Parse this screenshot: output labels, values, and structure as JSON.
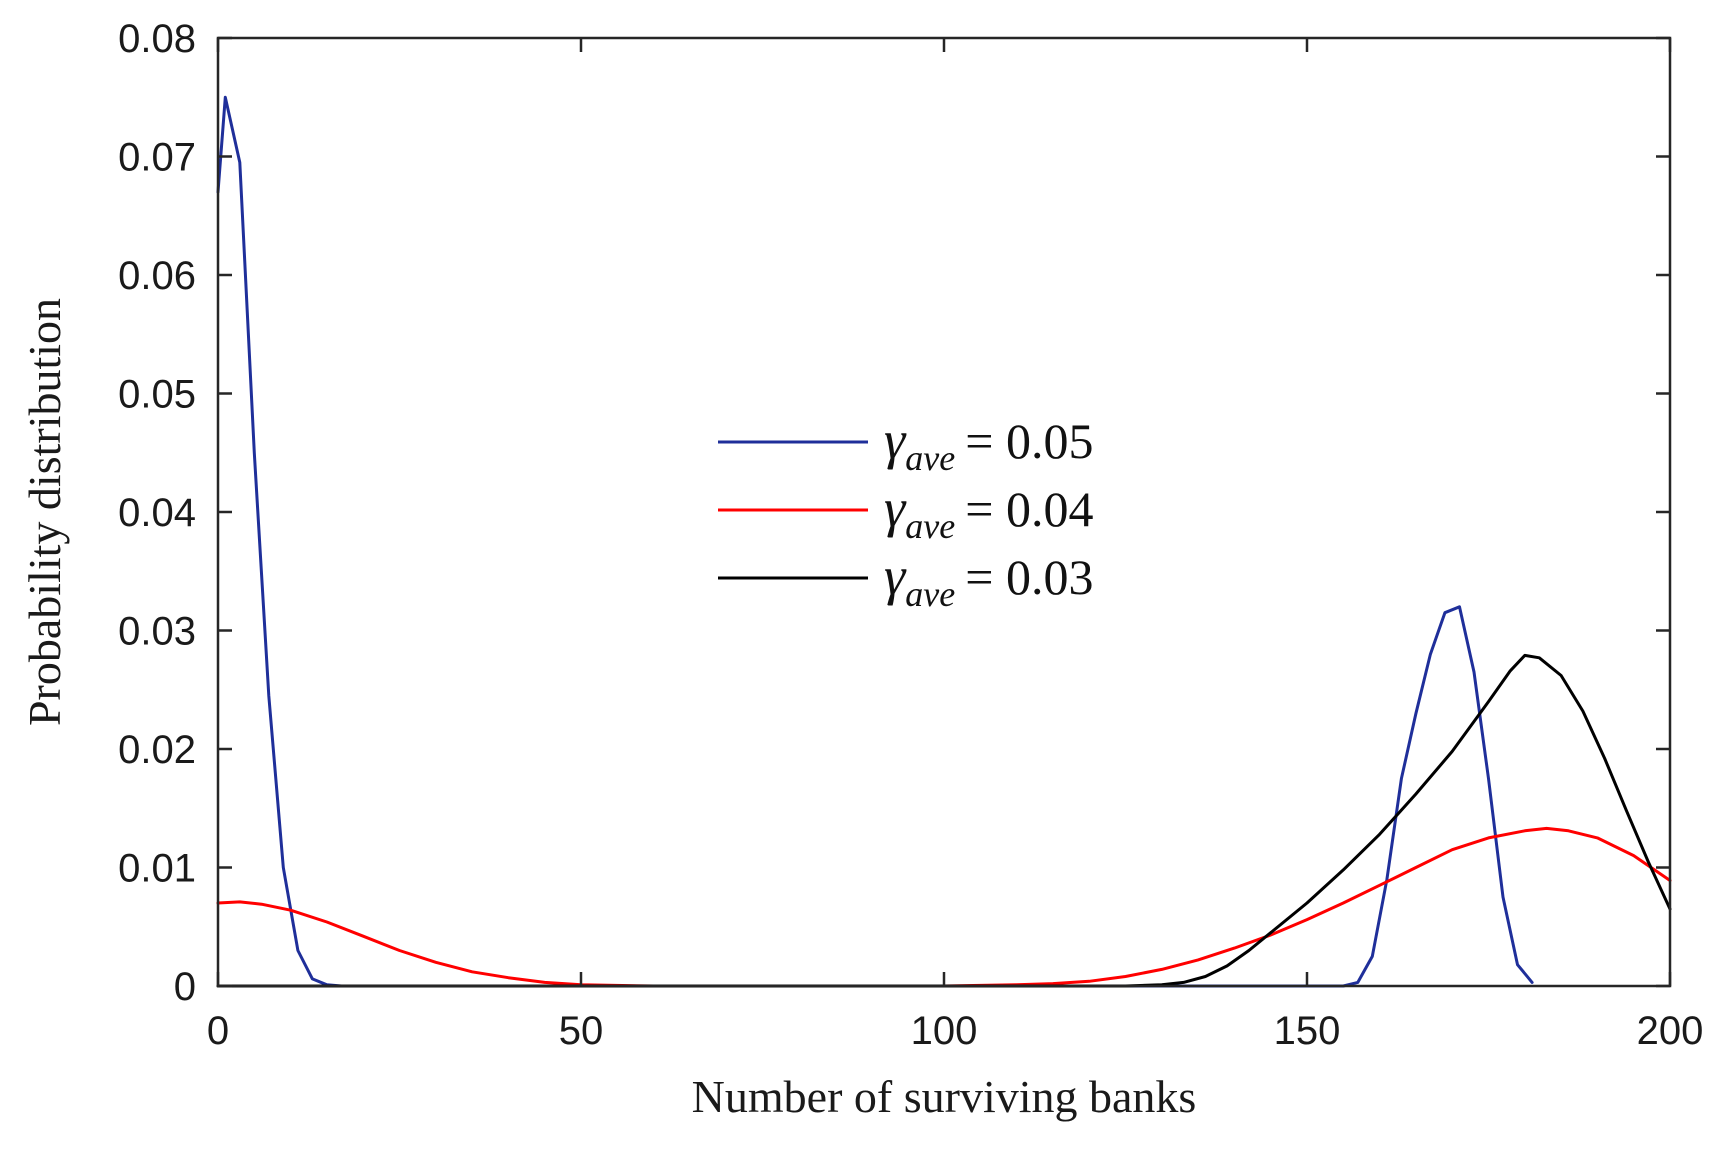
{
  "chart_data": {
    "type": "line",
    "title": "",
    "xlabel": "Number of surviving banks",
    "ylabel": "Probability distribution",
    "xlim": [
      0,
      200
    ],
    "ylim": [
      0,
      0.08
    ],
    "grid": false,
    "legend_position": "center",
    "x_ticks": [
      0,
      50,
      100,
      150,
      200
    ],
    "x_tick_labels": [
      "0",
      "50",
      "100",
      "150",
      "200"
    ],
    "y_ticks": [
      0,
      0.01,
      0.02,
      0.03,
      0.04,
      0.05,
      0.06,
      0.07,
      0.08
    ],
    "y_tick_labels": [
      "0",
      "0.01",
      "0.02",
      "0.03",
      "0.04",
      "0.05",
      "0.06",
      "0.07",
      "0.08"
    ],
    "series": [
      {
        "name": "γ_ave = 0.05",
        "legend_symbol": "γ",
        "legend_subscript": "ave",
        "legend_value": "= 0.05",
        "color": "#1f2f9a",
        "points": [
          [
            0,
            0.067
          ],
          [
            1,
            0.075
          ],
          [
            3,
            0.0695
          ],
          [
            5,
            0.045
          ],
          [
            7,
            0.0245
          ],
          [
            9,
            0.01
          ],
          [
            11,
            0.003
          ],
          [
            13,
            0.0006
          ],
          [
            15,
            0.0001
          ],
          [
            17,
            0
          ],
          [
            155,
            0
          ],
          [
            157,
            0.0003
          ],
          [
            159,
            0.0025
          ],
          [
            161,
            0.009
          ],
          [
            163,
            0.0175
          ],
          [
            165,
            0.023
          ],
          [
            167,
            0.028
          ],
          [
            169,
            0.0315
          ],
          [
            171,
            0.032
          ],
          [
            173,
            0.0265
          ],
          [
            175,
            0.0175
          ],
          [
            177,
            0.0075
          ],
          [
            179,
            0.0018
          ],
          [
            181,
            0.0003
          ]
        ]
      },
      {
        "name": "γ_ave = 0.04",
        "legend_symbol": "γ",
        "legend_subscript": "ave",
        "legend_value": "= 0.04",
        "color": "#ff0000",
        "points": [
          [
            0,
            0.007
          ],
          [
            3,
            0.0071
          ],
          [
            6,
            0.0069
          ],
          [
            10,
            0.0064
          ],
          [
            15,
            0.0054
          ],
          [
            20,
            0.0042
          ],
          [
            25,
            0.003
          ],
          [
            30,
            0.002
          ],
          [
            35,
            0.0012
          ],
          [
            40,
            0.0007
          ],
          [
            45,
            0.0003
          ],
          [
            50,
            0.0001
          ],
          [
            60,
            0
          ],
          [
            100,
            0
          ],
          [
            110,
            0.0001
          ],
          [
            115,
            0.0002
          ],
          [
            120,
            0.0004
          ],
          [
            125,
            0.0008
          ],
          [
            130,
            0.0014
          ],
          [
            135,
            0.0022
          ],
          [
            140,
            0.0032
          ],
          [
            145,
            0.0043
          ],
          [
            150,
            0.0056
          ],
          [
            155,
            0.007
          ],
          [
            160,
            0.0085
          ],
          [
            165,
            0.01
          ],
          [
            170,
            0.0115
          ],
          [
            175,
            0.0125
          ],
          [
            180,
            0.0131
          ],
          [
            183,
            0.0133
          ],
          [
            186,
            0.0131
          ],
          [
            190,
            0.0125
          ],
          [
            195,
            0.011
          ],
          [
            200,
            0.0089
          ]
        ]
      },
      {
        "name": "γ_ave = 0.03",
        "legend_symbol": "γ",
        "legend_subscript": "ave",
        "legend_value": "= 0.03",
        "color": "#000000",
        "points": [
          [
            0,
            0
          ],
          [
            125,
            0
          ],
          [
            130,
            0.0001
          ],
          [
            133,
            0.0003
          ],
          [
            136,
            0.0008
          ],
          [
            139,
            0.0017
          ],
          [
            142,
            0.003
          ],
          [
            145,
            0.0045
          ],
          [
            150,
            0.007
          ],
          [
            155,
            0.0098
          ],
          [
            160,
            0.0128
          ],
          [
            165,
            0.0162
          ],
          [
            170,
            0.0198
          ],
          [
            175,
            0.024
          ],
          [
            178,
            0.0266
          ],
          [
            180,
            0.0279
          ],
          [
            182,
            0.0277
          ],
          [
            185,
            0.0262
          ],
          [
            188,
            0.0232
          ],
          [
            191,
            0.0192
          ],
          [
            194,
            0.0148
          ],
          [
            197,
            0.0105
          ],
          [
            200,
            0.0065
          ]
        ]
      }
    ]
  }
}
